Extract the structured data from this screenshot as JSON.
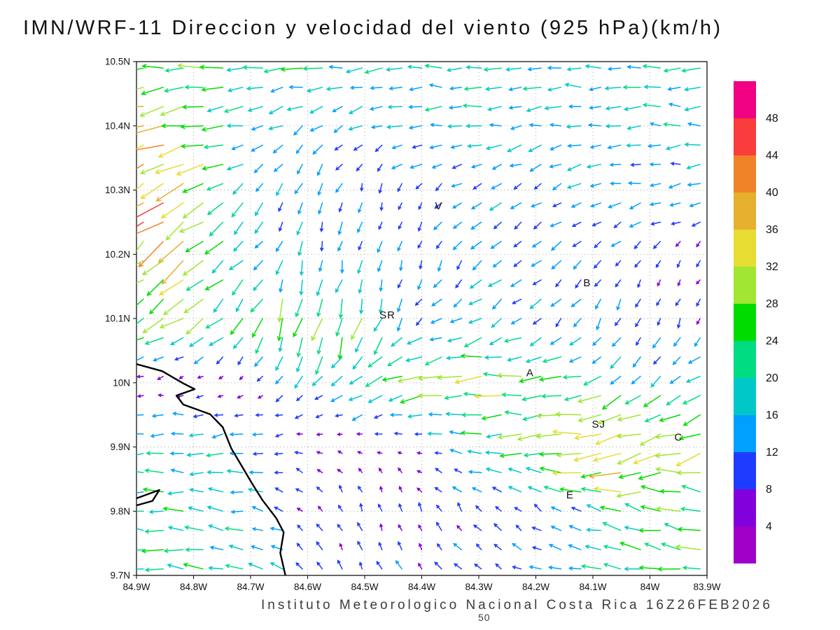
{
  "title": "IMN/WRF-11 Direccion y velocidad del viento (925 hPa)(km/h)",
  "footer": "Instituto Meteorologico Nacional Costa Rica 16Z26FEB2026",
  "reference_label": "50",
  "chart_data": {
    "type": "vector_field",
    "title": "IMN/WRF-11 Direccion y velocidad del viento (925 hPa)(km/h)",
    "model": "IMN/WRF-11",
    "variable": "Direccion y velocidad del viento",
    "pressure_level": "925 hPa",
    "units": "km/h",
    "valid_time": "16Z26FEB2026",
    "institution": "Instituto Meteorologico Nacional Costa Rica",
    "lon_range": [
      -84.9,
      -83.9
    ],
    "lat_range": [
      9.7,
      10.5
    ],
    "grid_step_deg": 0.1,
    "x_tick_labels": [
      "84.9W",
      "84.8W",
      "84.7W",
      "84.6W",
      "84.5W",
      "84.4W",
      "84.3W",
      "84.2W",
      "84.1W",
      "84W",
      "83.9W"
    ],
    "y_tick_labels": [
      "10.5N",
      "10.4N",
      "10.3N",
      "10.2N",
      "10.1N",
      "10N",
      "9.9N",
      "9.8N",
      "9.7N"
    ],
    "speed_levels_kmh": [
      4,
      8,
      12,
      16,
      20,
      24,
      28,
      32,
      36,
      40,
      44,
      48
    ],
    "speed_colors_low_to_high": [
      "#a000c8",
      "#8200dc",
      "#1e3cff",
      "#00a0ff",
      "#00c8c8",
      "#00dc82",
      "#00dc00",
      "#a0e632",
      "#e6dc32",
      "#e6af2d",
      "#f08228",
      "#fa3c3c",
      "#f00082"
    ],
    "colorbar_tick_labels_top_to_bottom": [
      "48",
      "44",
      "40",
      "36",
      "32",
      "28",
      "24",
      "20",
      "16",
      "12",
      "8",
      "4"
    ],
    "reference_vector_kmh": 50,
    "vectors": {
      "lons": [
        -84.9,
        -84.8,
        -84.7,
        -84.6,
        -84.5,
        -84.4,
        -84.3,
        -84.2,
        -84.1,
        -84.0,
        -83.9
      ],
      "lats_north_to_south": [
        10.5,
        10.4,
        10.3,
        10.2,
        10.1,
        10.0,
        9.9,
        9.8,
        9.7
      ],
      "u_kmh": [
        [
          -24,
          -26,
          -24,
          -22,
          -20,
          -18,
          -18,
          -18,
          -18,
          -20,
          -20
        ],
        [
          -34,
          -30,
          -16,
          -10,
          -12,
          -16,
          -18,
          -16,
          -16,
          -16,
          -16
        ],
        [
          -34,
          -26,
          -12,
          -6,
          -2,
          -6,
          -12,
          -10,
          -14,
          -14,
          -12
        ],
        [
          -30,
          -24,
          -10,
          -4,
          -2,
          -4,
          -8,
          -12,
          -8,
          -6,
          -4
        ],
        [
          -26,
          -20,
          -10,
          -8,
          -6,
          -8,
          -14,
          -10,
          -6,
          -4,
          -4
        ],
        [
          -4,
          -4,
          -4,
          -8,
          -16,
          -26,
          -28,
          -28,
          -20,
          -12,
          -16
        ],
        [
          -18,
          -18,
          -16,
          -6,
          -4,
          -6,
          -18,
          -24,
          -40,
          -34,
          -26
        ],
        [
          -20,
          -20,
          -16,
          -6,
          -2,
          -4,
          -6,
          -8,
          -16,
          -26,
          -22
        ],
        [
          -22,
          -22,
          -18,
          -8,
          -4,
          -6,
          -8,
          -14,
          -18,
          -22,
          -24
        ]
      ],
      "v_kmh": [
        [
          0,
          -2,
          -2,
          0,
          0,
          0,
          0,
          0,
          0,
          0,
          0
        ],
        [
          -10,
          -6,
          -4,
          -8,
          -6,
          -2,
          0,
          -2,
          0,
          0,
          0
        ],
        [
          -24,
          -16,
          -10,
          -12,
          -10,
          -8,
          -6,
          -8,
          -4,
          -2,
          -2
        ],
        [
          -26,
          -20,
          -12,
          -14,
          -12,
          -10,
          -10,
          -8,
          -8,
          -8,
          -6
        ],
        [
          -14,
          -12,
          -16,
          -30,
          -24,
          -8,
          -6,
          -10,
          -10,
          -10,
          -8
        ],
        [
          0,
          -2,
          -2,
          -10,
          -10,
          -6,
          -2,
          -2,
          -6,
          -14,
          -4
        ],
        [
          0,
          0,
          -2,
          2,
          2,
          0,
          2,
          0,
          -6,
          -8,
          -10
        ],
        [
          2,
          2,
          2,
          6,
          8,
          8,
          8,
          6,
          4,
          6,
          8
        ],
        [
          2,
          2,
          4,
          8,
          10,
          8,
          6,
          4,
          4,
          4,
          2
        ]
      ]
    },
    "city_labels": [
      {
        "label": "V",
        "lon": -84.37,
        "lat": 10.27
      },
      {
        "label": "B",
        "lon": -84.11,
        "lat": 10.15
      },
      {
        "label": "SR",
        "lon": -84.46,
        "lat": 10.1
      },
      {
        "label": "A",
        "lon": -84.21,
        "lat": 10.01
      },
      {
        "label": "SJ",
        "lon": -84.09,
        "lat": 9.93
      },
      {
        "label": "C",
        "lon": -83.95,
        "lat": 9.91
      },
      {
        "label": "E",
        "lon": -84.14,
        "lat": 9.82
      }
    ],
    "coastlines": [
      [
        [
          -84.9,
          10.029
        ],
        [
          -84.855,
          10.018
        ],
        [
          -84.818,
          9.999
        ],
        [
          -84.798,
          9.99
        ],
        [
          -84.83,
          9.98
        ],
        [
          -84.818,
          9.966
        ],
        [
          -84.771,
          9.951
        ],
        [
          -84.749,
          9.931
        ],
        [
          -84.734,
          9.898
        ],
        [
          -84.716,
          9.871
        ],
        [
          -84.698,
          9.844
        ],
        [
          -84.679,
          9.817
        ],
        [
          -84.655,
          9.789
        ],
        [
          -84.642,
          9.767
        ],
        [
          -84.648,
          9.735
        ],
        [
          -84.639,
          9.7
        ]
      ],
      [
        [
          -84.9,
          9.82
        ],
        [
          -84.86,
          9.833
        ],
        [
          -84.872,
          9.816
        ],
        [
          -84.9,
          9.809
        ]
      ]
    ]
  }
}
